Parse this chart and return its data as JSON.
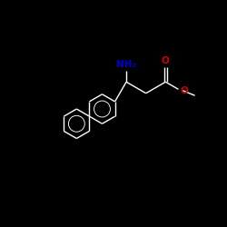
{
  "bg_color": "#000000",
  "bond_color": "#ffffff",
  "N_color": "#0000cc",
  "O_color": "#cc0000",
  "NH2_label": "NH₂",
  "O_label": "O",
  "NH2_fontsize": 7.5,
  "O_fontsize": 7.5,
  "linewidth": 1.0,
  "figsize": [
    2.5,
    2.5
  ],
  "dpi": 100,
  "xlim": [
    0,
    10
  ],
  "ylim": [
    0,
    10
  ]
}
